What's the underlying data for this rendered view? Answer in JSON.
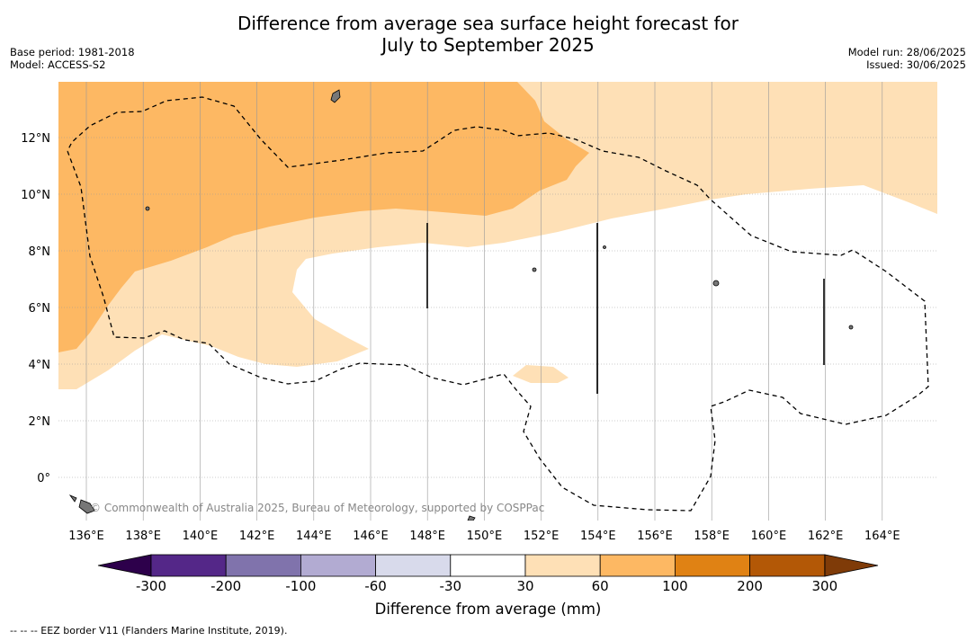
{
  "title_line1": "Difference from average sea surface height forecast for",
  "title_line2": "July to September 2025",
  "meta": {
    "base_period": "Base period: 1981-2018",
    "model": "Model: ACCESS-S2",
    "model_run": "Model run: 28/06/2025",
    "issued": "Issued: 30/06/2025"
  },
  "map": {
    "credit": "© Commonwealth of Australia 2025, Bureau of Meteorology, supported by COSPPac",
    "lat_labels": [
      "12°N",
      "10°N",
      "8°N",
      "6°N",
      "4°N",
      "2°N",
      "0°"
    ],
    "lon_labels": [
      "136°E",
      "138°E",
      "140°E",
      "142°E",
      "144°E",
      "146°E",
      "148°E",
      "150°E",
      "152°E",
      "154°E",
      "156°E",
      "158°E",
      "160°E",
      "162°E",
      "164°E"
    ]
  },
  "colorbar": {
    "label": "Difference from average (mm)",
    "ticks": [
      "-300",
      "-200",
      "-100",
      "-60",
      "-30",
      "30",
      "60",
      "100",
      "200",
      "300"
    ],
    "colors": {
      "below_min": "#2d004b",
      "c1": "#542788",
      "c2": "#8073ac",
      "c3": "#b2abd2",
      "c4": "#d8daeb",
      "c5": "#ffffff",
      "c6": "#fee0b6",
      "c7": "#fdb863",
      "c8": "#e08214",
      "c9": "#b35806",
      "above_max": "#7f3b08"
    }
  },
  "footnote": "-- -- -- EEZ border V11 (Flanders Marine Institute, 2019)."
}
